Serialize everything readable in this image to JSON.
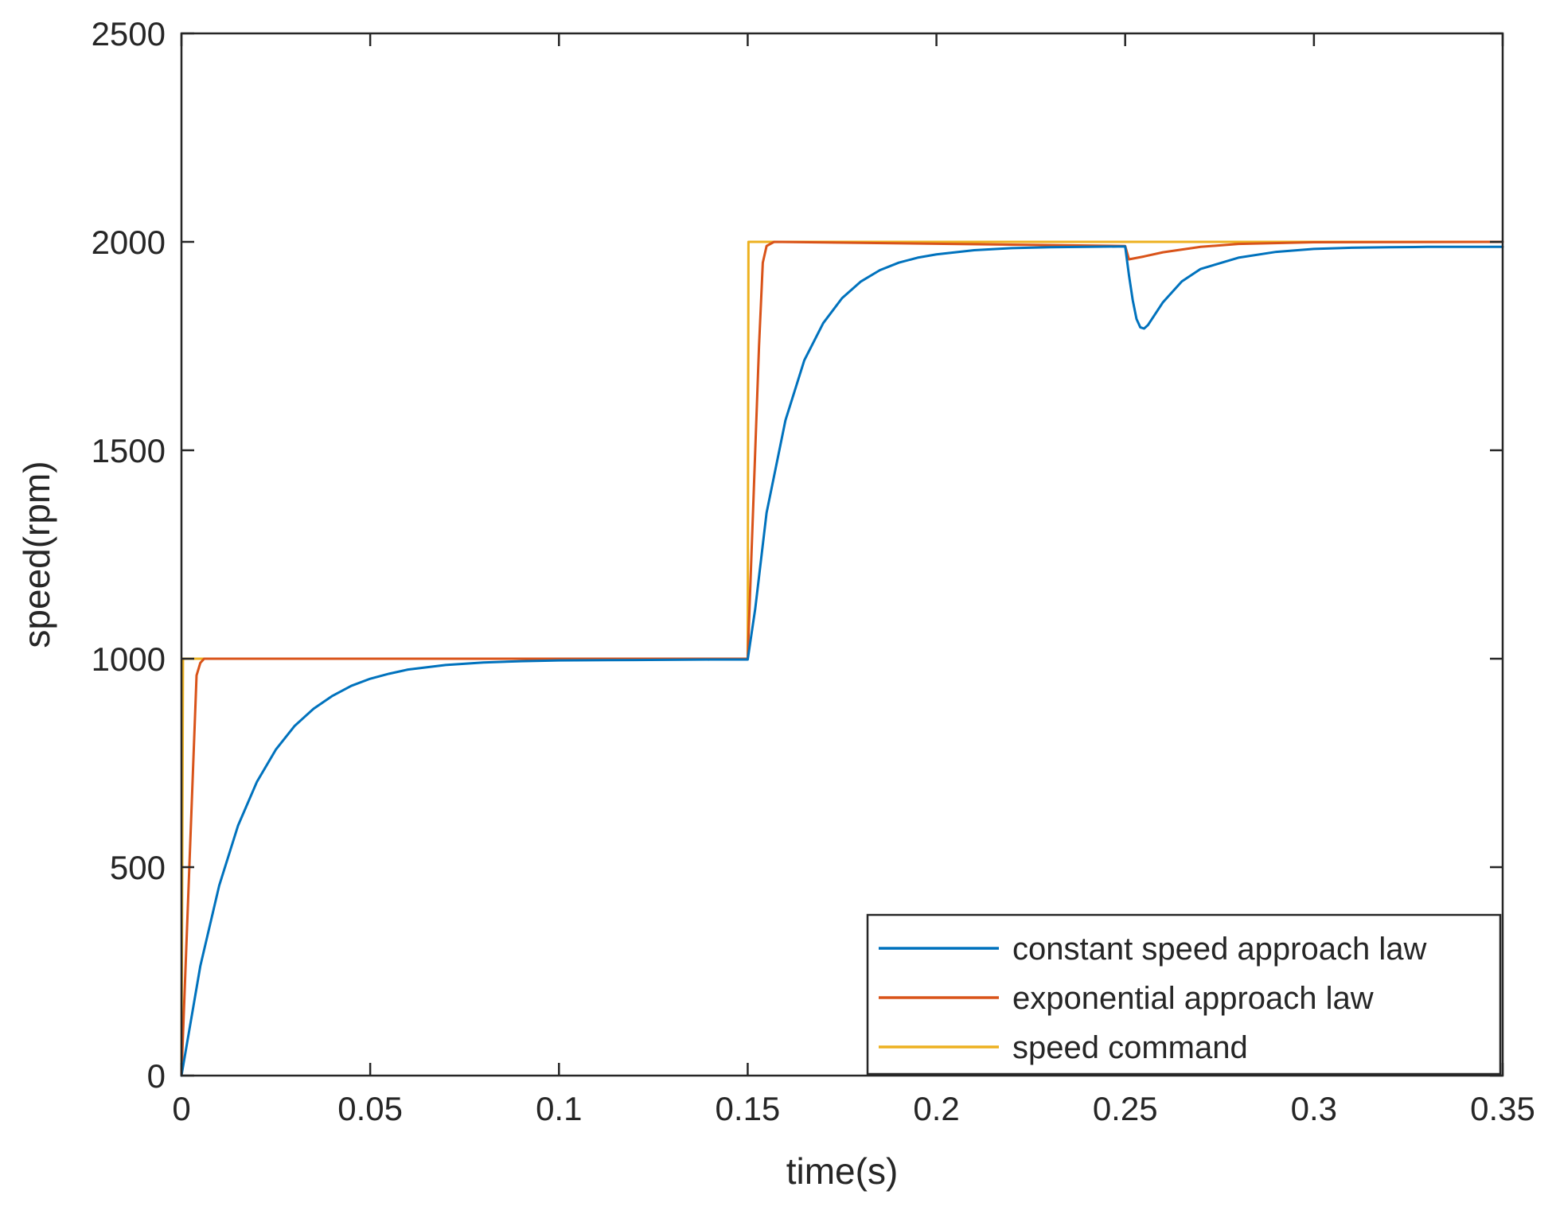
{
  "chart_data": {
    "type": "line",
    "xlabel": "time(s)",
    "ylabel": "speed(rpm)",
    "xlim": [
      0,
      0.35
    ],
    "ylim": [
      0,
      2500
    ],
    "xticks": [
      {
        "value": 0,
        "label": "0"
      },
      {
        "value": 0.05,
        "label": "0.05"
      },
      {
        "value": 0.1,
        "label": "0.1"
      },
      {
        "value": 0.15,
        "label": "0.15"
      },
      {
        "value": 0.2,
        "label": "0.2"
      },
      {
        "value": 0.25,
        "label": "0.25"
      },
      {
        "value": 0.3,
        "label": "0.3"
      },
      {
        "value": 0.35,
        "label": "0.35"
      }
    ],
    "yticks": [
      {
        "value": 0,
        "label": "0"
      },
      {
        "value": 500,
        "label": "500"
      },
      {
        "value": 1000,
        "label": "1000"
      },
      {
        "value": 1500,
        "label": "1500"
      },
      {
        "value": 2000,
        "label": "2000"
      },
      {
        "value": 2500,
        "label": "2500"
      }
    ],
    "grid": false,
    "box": true,
    "legend_position": "bottom-right",
    "series": [
      {
        "name": "constant speed approach law",
        "color": "#0072BD",
        "x": [
          0,
          0.005,
          0.01,
          0.015,
          0.02,
          0.025,
          0.03,
          0.035,
          0.04,
          0.045,
          0.05,
          0.055,
          0.06,
          0.07,
          0.08,
          0.09,
          0.1,
          0.12,
          0.14,
          0.15,
          0.152,
          0.155,
          0.16,
          0.165,
          0.17,
          0.175,
          0.18,
          0.185,
          0.19,
          0.195,
          0.2,
          0.21,
          0.22,
          0.23,
          0.24,
          0.25,
          0.251,
          0.252,
          0.253,
          0.254,
          0.255,
          0.256,
          0.26,
          0.265,
          0.27,
          0.28,
          0.29,
          0.3,
          0.31,
          0.32,
          0.33,
          0.34,
          0.35
        ],
        "y": [
          0,
          263,
          456,
          600,
          705,
          782,
          839,
          880,
          911,
          935,
          952,
          964,
          974,
          985,
          991,
          994,
          996,
          997,
          998,
          998,
          1120,
          1350,
          1572,
          1716,
          1805,
          1865,
          1905,
          1932,
          1950,
          1962,
          1970,
          1980,
          1985,
          1987,
          1988,
          1989,
          1920,
          1860,
          1815,
          1795,
          1792,
          1800,
          1855,
          1905,
          1935,
          1962,
          1976,
          1983,
          1986,
          1987,
          1988,
          1988,
          1988
        ]
      },
      {
        "name": "exponential approach law",
        "color": "#D95319",
        "x": [
          0,
          0.001,
          0.002,
          0.003,
          0.004,
          0.005,
          0.006,
          0.008,
          0.15,
          0.151,
          0.152,
          0.153,
          0.154,
          0.155,
          0.157,
          0.25,
          0.251,
          0.255,
          0.26,
          0.27,
          0.28,
          0.3,
          0.35
        ],
        "y": [
          0,
          240,
          480,
          720,
          960,
          990,
          1000,
          1000,
          1000,
          1250,
          1500,
          1750,
          1950,
          1990,
          2000,
          1990,
          1958,
          1965,
          1975,
          1988,
          1995,
          1999,
          2000
        ]
      },
      {
        "name": "speed command",
        "color": "#EDB120",
        "x": [
          0,
          0.0004,
          0.15,
          0.1502,
          0.35
        ],
        "y": [
          0,
          1000,
          1000,
          2000,
          2000
        ]
      }
    ]
  }
}
